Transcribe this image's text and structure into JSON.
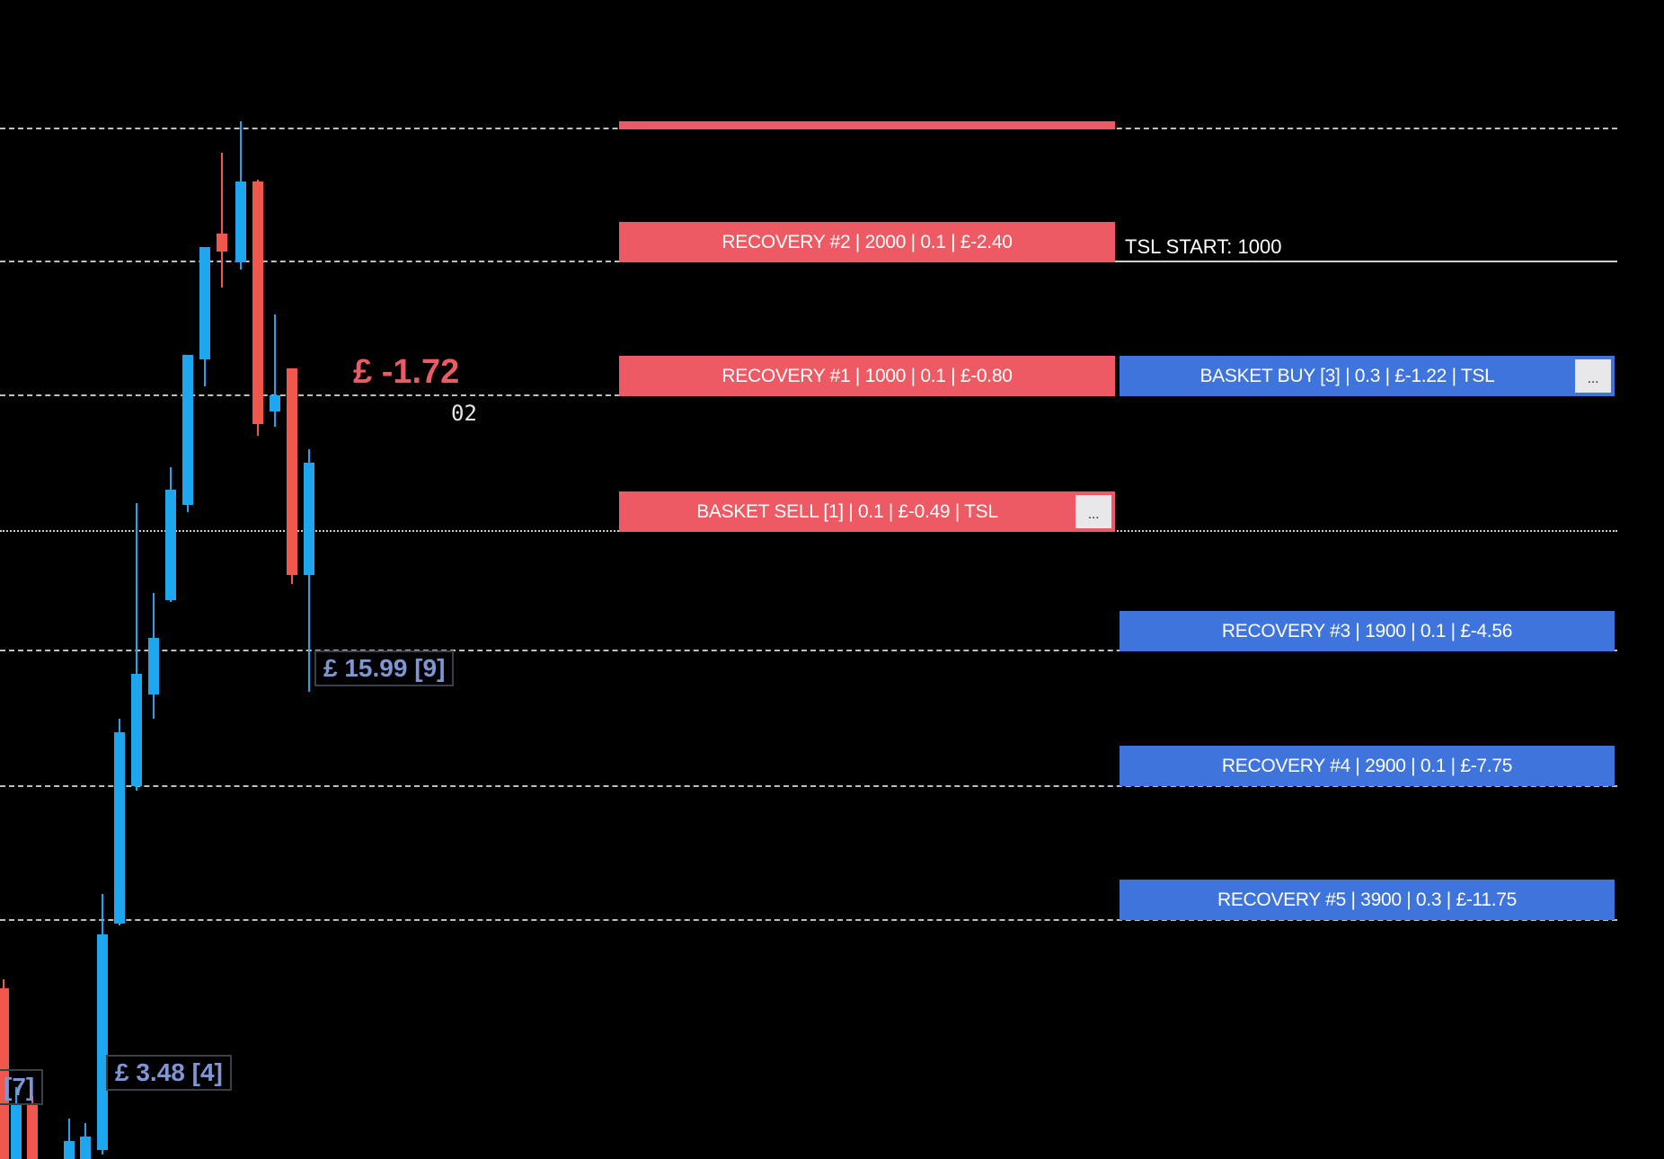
{
  "levels": {
    "tsl_start": "TSL START: 1000"
  },
  "orders": {
    "recovery2": "RECOVERY #2 | 2000 | 0.1 | £-2.40",
    "recovery1": "RECOVERY #1 | 1000 | 0.1 | £-0.80",
    "basket_sell": "BASKET SELL [1] | 0.1 | £-0.49 | TSL",
    "basket_buy": "BASKET BUY [3] | 0.3 | £-1.22 | TSL",
    "recovery3": "RECOVERY #3 | 1900 | 0.1 | £-4.56",
    "recovery4": "RECOVERY #4 | 2900 | 0.1 | £-7.75",
    "recovery5": "RECOVERY #5 | 3900 | 0.3 | £-11.75",
    "more_label": "..."
  },
  "overlay": {
    "total_pl": "£ -1.72",
    "countdown": "02",
    "pl_box_1": "£ 15.99 [9]",
    "pl_box_2": "£ 3.48 [4]",
    "pl_box_3": "[7]"
  },
  "colors": {
    "sell": "#ee5a63",
    "buy": "#3f74dc",
    "bull_candle": "#1ea7ef",
    "bear_candle": "#f0584d",
    "background": "#000000"
  }
}
